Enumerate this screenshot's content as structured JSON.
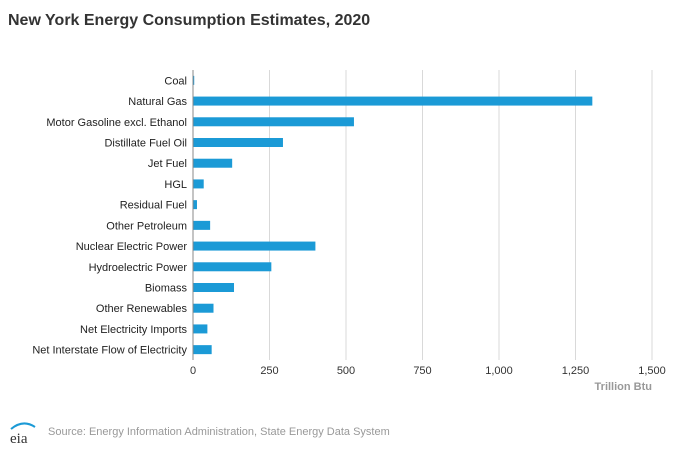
{
  "title": "New York Energy Consumption Estimates, 2020",
  "source_text": "Source: Energy Information Administration, State Energy Data System",
  "logo_text": "eia",
  "colors": {
    "bar": "#1b9ad6",
    "grid": "#d9d9d9",
    "axis": "#888888"
  },
  "chart_data": {
    "type": "bar",
    "orientation": "horizontal",
    "categories": [
      "Coal",
      "Natural Gas",
      "Motor Gasoline excl. Ethanol",
      "Distillate Fuel Oil",
      "Jet Fuel",
      "HGL",
      "Residual Fuel",
      "Other Petroleum",
      "Nuclear Electric Power",
      "Hydroelectric Power",
      "Biomass",
      "Other Renewables",
      "Net Electricity Imports",
      "Net Interstate Flow of Electricity"
    ],
    "values": [
      4,
      1305,
      526,
      294,
      128,
      35,
      13,
      56,
      400,
      256,
      134,
      67,
      47,
      61
    ],
    "xlabel": "Trillion Btu",
    "xlim": [
      0,
      1500
    ],
    "xticks": [
      0,
      250,
      500,
      750,
      1000,
      1250,
      1500
    ],
    "xtick_labels": [
      "0",
      "250",
      "500",
      "750",
      "1,000",
      "1,250",
      "1,500"
    ],
    "grid": true
  }
}
